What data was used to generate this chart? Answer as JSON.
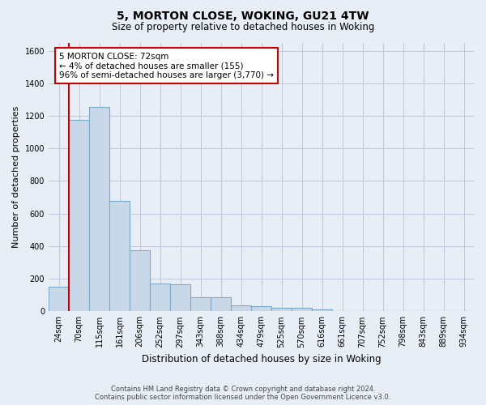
{
  "title1": "5, MORTON CLOSE, WOKING, GU21 4TW",
  "title2": "Size of property relative to detached houses in Woking",
  "xlabel": "Distribution of detached houses by size in Woking",
  "ylabel": "Number of detached properties",
  "categories": [
    "24sqm",
    "70sqm",
    "115sqm",
    "161sqm",
    "206sqm",
    "252sqm",
    "297sqm",
    "343sqm",
    "388sqm",
    "434sqm",
    "479sqm",
    "525sqm",
    "570sqm",
    "616sqm",
    "661sqm",
    "707sqm",
    "752sqm",
    "798sqm",
    "843sqm",
    "889sqm",
    "934sqm"
  ],
  "bar_values": [
    150,
    1175,
    1255,
    680,
    375,
    170,
    165,
    85,
    85,
    35,
    30,
    20,
    20,
    10,
    0,
    0,
    0,
    0,
    0,
    0,
    0
  ],
  "bar_color": "#c8d8e8",
  "bar_edgecolor": "#7aaac8",
  "grid_color": "#c0c8d8",
  "bg_color": "#e8eef5",
  "property_label": "5 MORTON CLOSE: 72sqm",
  "annotation_line1": "← 4% of detached houses are smaller (155)",
  "annotation_line2": "96% of semi-detached houses are larger (3,770) →",
  "annotation_box_color": "#ffffff",
  "annotation_box_edgecolor": "#cc0000",
  "vline_color": "#cc0000",
  "ylim": [
    0,
    1650
  ],
  "yticks": [
    0,
    200,
    400,
    600,
    800,
    1000,
    1200,
    1400,
    1600
  ],
  "footer1": "Contains HM Land Registry data © Crown copyright and database right 2024.",
  "footer2": "Contains public sector information licensed under the Open Government Licence v3.0.",
  "title1_fontsize": 10,
  "title2_fontsize": 8.5,
  "xlabel_fontsize": 8.5,
  "ylabel_fontsize": 8,
  "tick_fontsize": 7,
  "annotation_fontsize": 7.5,
  "footer_fontsize": 6
}
